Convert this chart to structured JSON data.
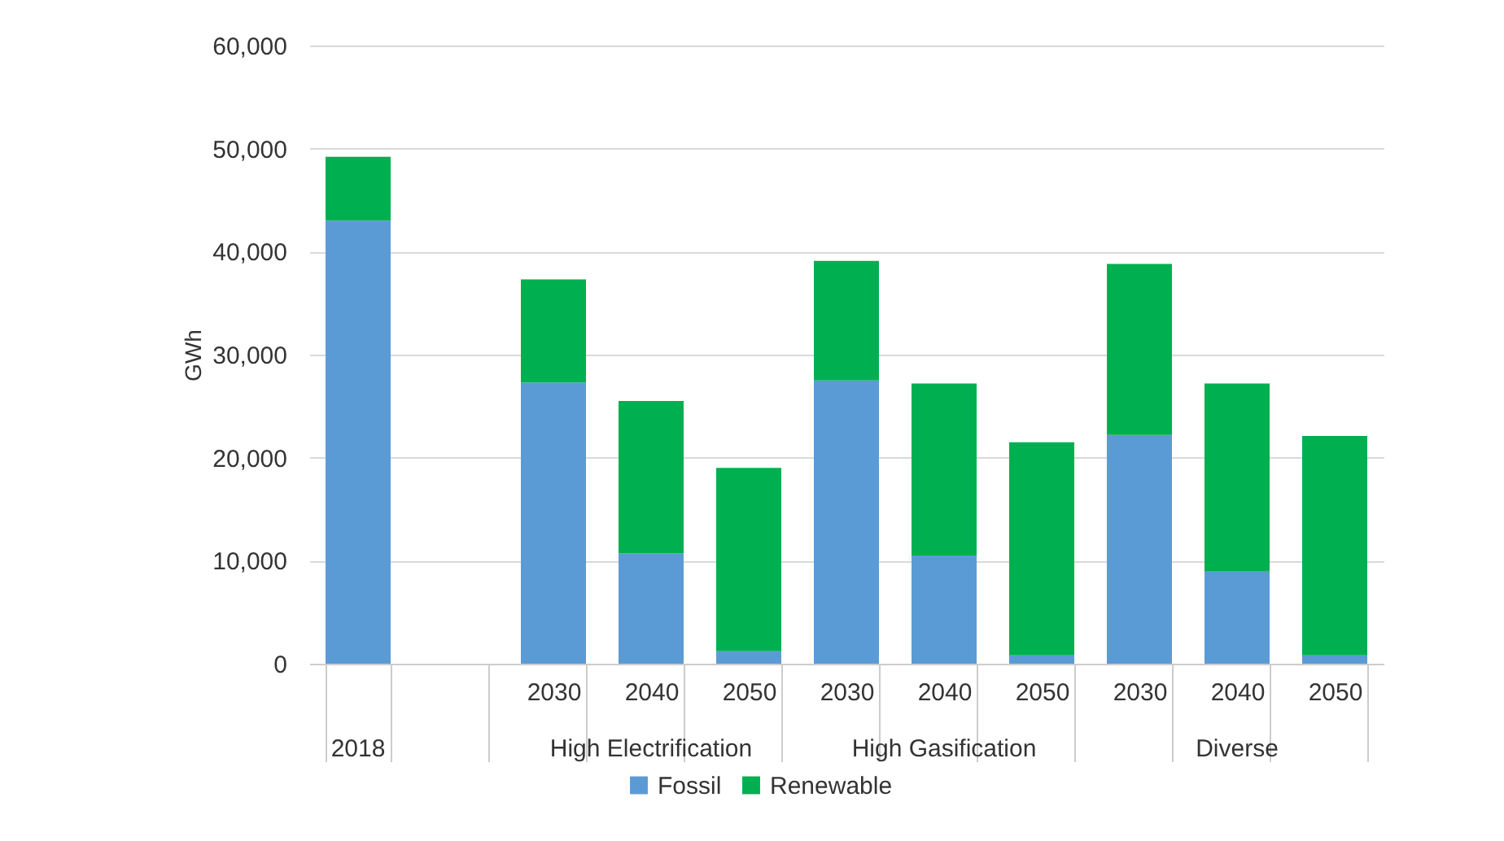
{
  "chart_data": {
    "type": "bar",
    "stacked": true,
    "ylabel": "GWh",
    "categories": [
      null,
      null,
      "2030",
      "2040",
      "2050",
      "2030",
      "2040",
      "2050",
      "2030",
      "2040",
      "2050"
    ],
    "series": [
      {
        "name": "Fossil",
        "color": "#5b9bd5",
        "values": [
          43000,
          null,
          27300,
          10700,
          1200,
          27500,
          10500,
          800,
          22200,
          9000,
          800
        ]
      },
      {
        "name": "Renewable",
        "color": "#00b050",
        "values": [
          6200,
          null,
          10000,
          14800,
          17800,
          11600,
          16700,
          20700,
          16600,
          18200,
          21300
        ]
      }
    ],
    "annotations": [
      "2018",
      "High Electrification",
      "High Gasification",
      "Diverse"
    ],
    "ylim": [
      0,
      60000
    ],
    "yticks": [
      0,
      {
        "value": 10000,
        "label": "10,000"
      },
      {
        "value": 20000,
        "label": "20,000"
      },
      {
        "value": 30000,
        "label": "30,000"
      },
      {
        "value": 40000,
        "label": "40,000"
      },
      {
        "value": 50000,
        "label": "50,000"
      },
      {
        "value": 60000,
        "label": "60,000"
      }
    ],
    "grid": "y",
    "legend": "bottom"
  }
}
